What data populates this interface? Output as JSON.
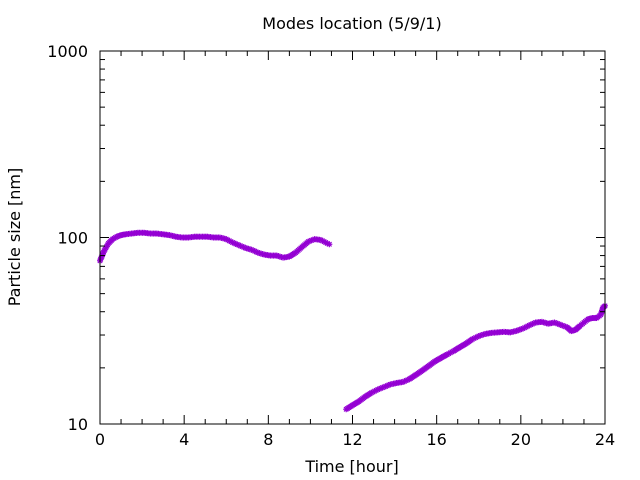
{
  "chart_data": {
    "type": "scatter",
    "title": "Modes location (5/9/1)",
    "xlabel": "Time [hour]",
    "ylabel": "Particle size [nm]",
    "xlim": [
      0,
      24
    ],
    "ylim": [
      10,
      1000
    ],
    "yscale": "log",
    "grid": false,
    "legend": "none",
    "marker_color": "#9400D3",
    "x_ticks": [
      {
        "value": 0,
        "label": "0"
      },
      {
        "value": 4,
        "label": "4"
      },
      {
        "value": 8,
        "label": "8"
      },
      {
        "value": 12,
        "label": "12"
      },
      {
        "value": 16,
        "label": "16"
      },
      {
        "value": 20,
        "label": "20"
      },
      {
        "value": 24,
        "label": "24"
      }
    ],
    "y_ticks": [
      {
        "value": 10,
        "label": "10"
      },
      {
        "value": 100,
        "label": "100"
      },
      {
        "value": 1000,
        "label": "1000"
      }
    ],
    "series": [
      {
        "points": [
          [
            0.0,
            75
          ],
          [
            0.2,
            85
          ],
          [
            0.4,
            93
          ],
          [
            0.6,
            98
          ],
          [
            0.8,
            101
          ],
          [
            1.0,
            103
          ],
          [
            1.2,
            104
          ],
          [
            1.5,
            105
          ],
          [
            1.8,
            106
          ],
          [
            2.1,
            106
          ],
          [
            2.4,
            105
          ],
          [
            2.7,
            105
          ],
          [
            3.0,
            104
          ],
          [
            3.3,
            103
          ],
          [
            3.6,
            101
          ],
          [
            3.9,
            100
          ],
          [
            4.2,
            100
          ],
          [
            4.5,
            101
          ],
          [
            4.8,
            101
          ],
          [
            5.1,
            101
          ],
          [
            5.4,
            100
          ],
          [
            5.7,
            100
          ],
          [
            6.0,
            98
          ],
          [
            6.3,
            94
          ],
          [
            6.6,
            91
          ],
          [
            6.9,
            88
          ],
          [
            7.2,
            86
          ],
          [
            7.5,
            83
          ],
          [
            7.8,
            81
          ],
          [
            8.1,
            80
          ],
          [
            8.4,
            80
          ],
          [
            8.7,
            78
          ],
          [
            9.0,
            79
          ],
          [
            9.3,
            83
          ],
          [
            9.6,
            89
          ],
          [
            9.9,
            95
          ],
          [
            10.2,
            98
          ],
          [
            10.5,
            97
          ],
          [
            10.8,
            93
          ],
          [
            10.9,
            92
          ]
        ]
      },
      {
        "points": [
          [
            11.7,
            12
          ],
          [
            12.0,
            12.6
          ],
          [
            12.3,
            13.2
          ],
          [
            12.6,
            14
          ],
          [
            12.9,
            14.7
          ],
          [
            13.2,
            15.3
          ],
          [
            13.5,
            15.8
          ],
          [
            13.8,
            16.3
          ],
          [
            14.1,
            16.6
          ],
          [
            14.4,
            16.8
          ],
          [
            14.7,
            17.4
          ],
          [
            15.0,
            18.3
          ],
          [
            15.3,
            19.3
          ],
          [
            15.6,
            20.4
          ],
          [
            15.9,
            21.6
          ],
          [
            16.2,
            22.6
          ],
          [
            16.5,
            23.6
          ],
          [
            16.8,
            24.6
          ],
          [
            17.1,
            25.8
          ],
          [
            17.4,
            27
          ],
          [
            17.7,
            28.5
          ],
          [
            18.0,
            29.6
          ],
          [
            18.3,
            30.4
          ],
          [
            18.6,
            30.8
          ],
          [
            18.9,
            31
          ],
          [
            19.2,
            31.2
          ],
          [
            19.5,
            31
          ],
          [
            19.8,
            31.6
          ],
          [
            20.1,
            32.5
          ],
          [
            20.4,
            33.8
          ],
          [
            20.7,
            35
          ],
          [
            21.0,
            35.3
          ],
          [
            21.3,
            34.5
          ],
          [
            21.6,
            35
          ],
          [
            21.9,
            34
          ],
          [
            22.2,
            33
          ],
          [
            22.4,
            31.5
          ],
          [
            22.6,
            32
          ],
          [
            22.8,
            33.5
          ],
          [
            23.0,
            35
          ],
          [
            23.2,
            36.5
          ],
          [
            23.4,
            37
          ],
          [
            23.6,
            37
          ],
          [
            23.8,
            38.5
          ],
          [
            23.9,
            42
          ],
          [
            24.0,
            43
          ]
        ]
      }
    ]
  }
}
